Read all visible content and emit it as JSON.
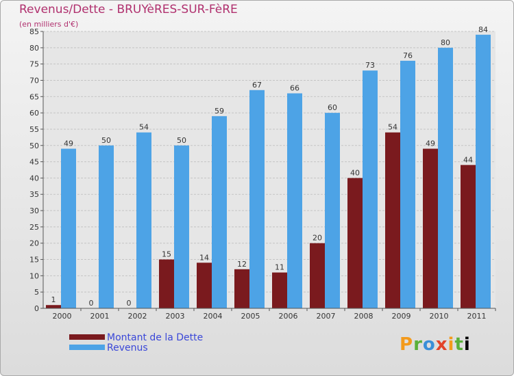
{
  "header": {
    "title": "Revenus/Dette - BRUYèRES-SUR-FèRE",
    "subtitle": "(en milliers d'€)"
  },
  "chart_data": {
    "type": "bar",
    "title": "Revenus/Dette - BRUYèRES-SUR-FèRE",
    "ylabel": "(en milliers d'€)",
    "xlabel": "",
    "categories": [
      "2000",
      "2001",
      "2002",
      "2003",
      "2004",
      "2005",
      "2006",
      "2007",
      "2008",
      "2009",
      "2010",
      "2011"
    ],
    "series": [
      {
        "name": "Montant de la Dette",
        "color": "#7a1a1e",
        "values": [
          1,
          0,
          0,
          15,
          14,
          12,
          11,
          20,
          40,
          54,
          49,
          44
        ]
      },
      {
        "name": "Revenus",
        "color": "#4da3e6",
        "values": [
          49,
          50,
          54,
          50,
          59,
          67,
          66,
          60,
          73,
          76,
          80,
          84
        ]
      }
    ],
    "ylim": [
      0,
      85
    ],
    "yticks": [
      0,
      5,
      10,
      15,
      20,
      25,
      30,
      35,
      40,
      45,
      50,
      55,
      60,
      65,
      70,
      75,
      80,
      85
    ],
    "grid": true,
    "legend": "bottom-left"
  },
  "legend": {
    "items": [
      {
        "label": "Montant de la Dette",
        "color": "#7a1a1e"
      },
      {
        "label": "Revenus",
        "color": "#4da3e6"
      }
    ]
  },
  "logo": {
    "text": "Proxiti"
  }
}
